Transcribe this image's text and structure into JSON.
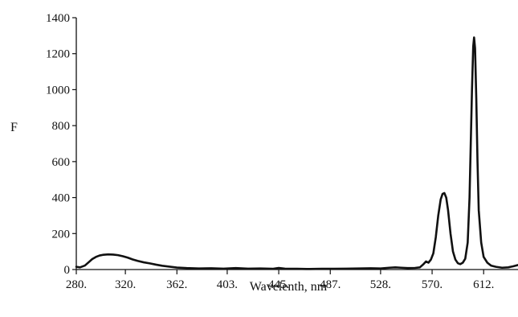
{
  "chart_data": {
    "type": "line",
    "title": "",
    "xlabel": "Wavelenth, nm",
    "ylabel": "F",
    "xlim": [
      280,
      640
    ],
    "ylim": [
      0,
      1400
    ],
    "grid": false,
    "legend": "none",
    "x_ticks": [
      {
        "value": 280,
        "label": "280."
      },
      {
        "value": 320,
        "label": "320."
      },
      {
        "value": 362,
        "label": "362."
      },
      {
        "value": 403,
        "label": "403."
      },
      {
        "value": 445,
        "label": "445."
      },
      {
        "value": 487,
        "label": "487."
      },
      {
        "value": 528,
        "label": "528."
      },
      {
        "value": 570,
        "label": "570."
      },
      {
        "value": 612,
        "label": "612."
      }
    ],
    "y_ticks": [
      {
        "value": 0,
        "label": "0"
      },
      {
        "value": 200,
        "label": "200"
      },
      {
        "value": 400,
        "label": "400"
      },
      {
        "value": 600,
        "label": "600"
      },
      {
        "value": 800,
        "label": "800"
      },
      {
        "value": 1000,
        "label": "1000"
      },
      {
        "value": 1200,
        "label": "1200"
      },
      {
        "value": 1400,
        "label": "1400"
      }
    ],
    "series": [
      {
        "color": "#111111",
        "points": [
          [
            280,
            15
          ],
          [
            283,
            12
          ],
          [
            287,
            22
          ],
          [
            290,
            40
          ],
          [
            293,
            58
          ],
          [
            296,
            70
          ],
          [
            299,
            78
          ],
          [
            302,
            82
          ],
          [
            306,
            84
          ],
          [
            310,
            83
          ],
          [
            314,
            80
          ],
          [
            318,
            74
          ],
          [
            322,
            66
          ],
          [
            326,
            56
          ],
          [
            330,
            48
          ],
          [
            335,
            40
          ],
          [
            340,
            34
          ],
          [
            345,
            27
          ],
          [
            350,
            21
          ],
          [
            356,
            16
          ],
          [
            362,
            11
          ],
          [
            370,
            8
          ],
          [
            380,
            6
          ],
          [
            390,
            7
          ],
          [
            400,
            5
          ],
          [
            410,
            8
          ],
          [
            420,
            5
          ],
          [
            430,
            6
          ],
          [
            440,
            4
          ],
          [
            445,
            9
          ],
          [
            450,
            5
          ],
          [
            460,
            4
          ],
          [
            470,
            3
          ],
          [
            480,
            4
          ],
          [
            490,
            4
          ],
          [
            500,
            5
          ],
          [
            510,
            6
          ],
          [
            520,
            7
          ],
          [
            528,
            6
          ],
          [
            535,
            10
          ],
          [
            540,
            12
          ],
          [
            545,
            10
          ],
          [
            550,
            8
          ],
          [
            556,
            9
          ],
          [
            560,
            12
          ],
          [
            563,
            30
          ],
          [
            565,
            45
          ],
          [
            567,
            38
          ],
          [
            569,
            55
          ],
          [
            571,
            90
          ],
          [
            573,
            180
          ],
          [
            575,
            300
          ],
          [
            577,
            390
          ],
          [
            578.5,
            420
          ],
          [
            580,
            425
          ],
          [
            581.5,
            400
          ],
          [
            583,
            330
          ],
          [
            585,
            200
          ],
          [
            587,
            100
          ],
          [
            589,
            55
          ],
          [
            591,
            35
          ],
          [
            593,
            30
          ],
          [
            595,
            38
          ],
          [
            597,
            60
          ],
          [
            599,
            150
          ],
          [
            600.5,
            400
          ],
          [
            601.5,
            700
          ],
          [
            602.5,
            1000
          ],
          [
            603.5,
            1240
          ],
          [
            604.2,
            1290
          ],
          [
            605,
            1230
          ],
          [
            606,
            950
          ],
          [
            607,
            600
          ],
          [
            608,
            330
          ],
          [
            610,
            150
          ],
          [
            612,
            70
          ],
          [
            615,
            38
          ],
          [
            618,
            22
          ],
          [
            622,
            15
          ],
          [
            627,
            10
          ],
          [
            632,
            12
          ],
          [
            636,
            18
          ],
          [
            640,
            25
          ]
        ]
      }
    ]
  }
}
